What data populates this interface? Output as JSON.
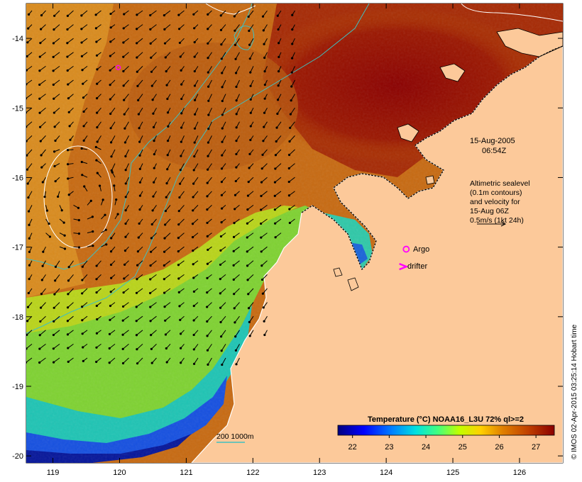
{
  "map": {
    "lon_range": [
      118.6,
      126.65
    ],
    "lat_range": [
      -20.1,
      -13.5
    ],
    "lon_ticks": [
      119,
      120,
      121,
      122,
      123,
      124,
      125,
      126
    ],
    "lat_ticks": [
      -14,
      -15,
      -16,
      -17,
      -18,
      -19,
      -20
    ],
    "lon_tick_labels": [
      "119",
      "120",
      "121",
      "122",
      "123",
      "124",
      "125",
      "126"
    ],
    "lat_tick_labels": [
      "-14",
      "-15",
      "-16",
      "-17",
      "-18",
      "-19",
      "-20"
    ]
  },
  "annotations": {
    "date": "15-Aug-2005",
    "time": "06:54Z",
    "altimetry_lines": [
      "Altimetric sealevel",
      "(0.1m contours)",
      "and velocity for",
      "15-Aug 06Z",
      "0.5m/s (1kt 24h)"
    ],
    "argo_label": "Argo",
    "drifter_label": "drifter",
    "depth_label": "200  1000m"
  },
  "colorbar": {
    "title": "Temperature (°C) NOAA16_L3U 72% ql>=2",
    "tick_values": [
      22,
      23,
      24,
      25,
      26,
      27
    ],
    "tick_labels": [
      "22",
      "23",
      "24",
      "25",
      "26",
      "27"
    ],
    "range": [
      21.6,
      27.5
    ]
  },
  "credit": "© IMOS 02-Apr-2015 03:25:14 Hobart time",
  "markers": {
    "argo_floats": [
      {
        "lon": 119.98,
        "lat": -14.42
      },
      {
        "lon": 124.3,
        "lat": -17.03
      }
    ],
    "drifter": {
      "lon": 124.25,
      "lat": -17.28
    }
  },
  "colors": {
    "land": "#fcc99a",
    "sst_warmest": "#8b0000",
    "sst_coldest": "#00007f",
    "isobath": "#40c0c0",
    "argo": "#ff00ff",
    "drifter": "#ff00ff",
    "velocity_arrow": "#000000",
    "sealevel_contour": "#ffffff"
  }
}
